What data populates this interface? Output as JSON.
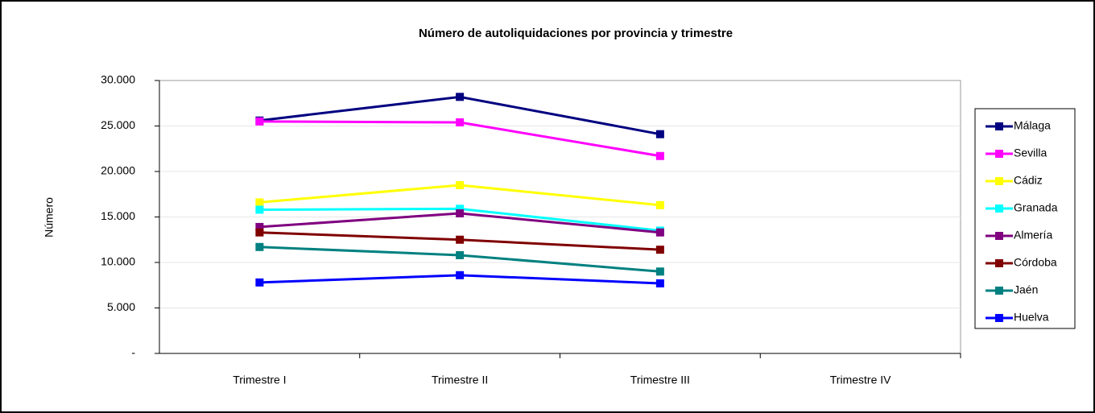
{
  "chart_data": {
    "type": "line",
    "title": "Número de autoliquidaciones por provincia y trimestre",
    "y_label": "Número",
    "categories": [
      "Trimestre I",
      "Trimestre II",
      "Trimestre III",
      "Trimestre IV"
    ],
    "series": [
      {
        "name": "Málaga",
        "color": "#000080",
        "values": [
          25600,
          28200,
          24100,
          null
        ]
      },
      {
        "name": "Sevilla",
        "color": "#ff00ff",
        "values": [
          25500,
          25400,
          21700,
          null
        ]
      },
      {
        "name": "Cádiz",
        "color": "#ffff00",
        "values": [
          16600,
          18500,
          16300,
          null
        ]
      },
      {
        "name": "Granada",
        "color": "#00ffff",
        "values": [
          15800,
          15900,
          13500,
          null
        ]
      },
      {
        "name": "Almería",
        "color": "#800080",
        "values": [
          13900,
          15400,
          13300,
          null
        ]
      },
      {
        "name": "Córdoba",
        "color": "#800000",
        "values": [
          13300,
          12500,
          11400,
          null
        ]
      },
      {
        "name": "Jaén",
        "color": "#008080",
        "values": [
          11700,
          10800,
          9000,
          null
        ]
      },
      {
        "name": "Huelva",
        "color": "#0000ff",
        "values": [
          7800,
          8600,
          7700,
          null
        ]
      }
    ],
    "ylim": [
      0,
      30000
    ],
    "yticks": [
      {
        "value": 0,
        "label": "-"
      },
      {
        "value": 5000,
        "label": "5.000"
      },
      {
        "value": 10000,
        "label": "10.000"
      },
      {
        "value": 15000,
        "label": "15.000"
      },
      {
        "value": 20000,
        "label": "20.000"
      },
      {
        "value": 25000,
        "label": "25.000"
      },
      {
        "value": 30000,
        "label": "30.000"
      }
    ],
    "grid": true,
    "legend": "right"
  }
}
